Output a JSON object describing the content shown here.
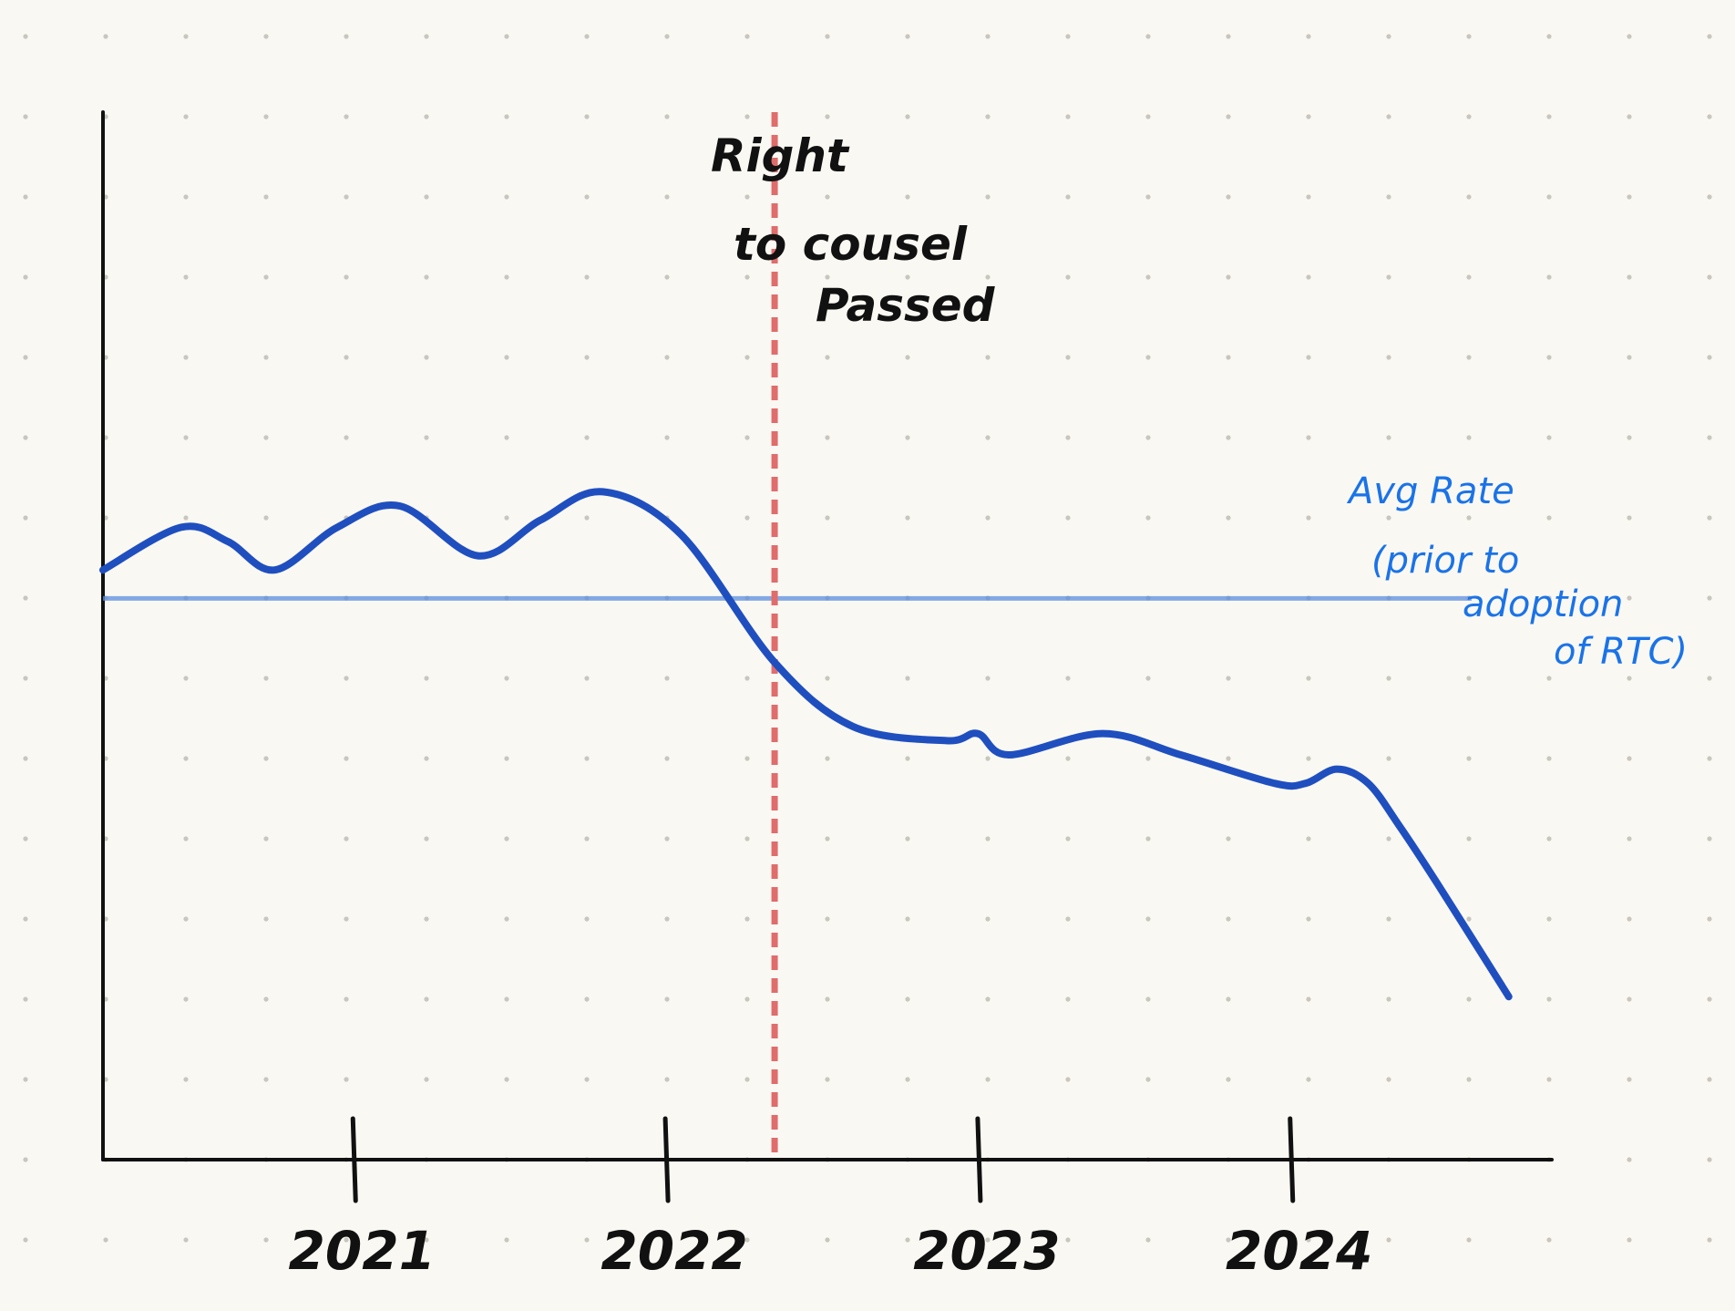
{
  "chart_data": {
    "type": "line",
    "title": "",
    "xlabel": "",
    "ylabel": "",
    "x_ticks": [
      "2021",
      "2022",
      "2023",
      "2024"
    ],
    "x_tick_positions": [
      2021.0,
      2022.0,
      2023.0,
      2024.0
    ],
    "xlim": [
      2020.2,
      2024.8
    ],
    "ylim": [
      0,
      100
    ],
    "grid": "dots",
    "series": [
      {
        "color": "#1f4fbf",
        "x": [
          2020.2,
          2020.45,
          2020.6,
          2020.75,
          2020.95,
          2021.15,
          2021.4,
          2021.6,
          2021.8,
          2022.05,
          2022.35,
          2022.6,
          2022.9,
          2023.0,
          2023.1,
          2023.4,
          2023.65,
          2023.95,
          2024.05,
          2024.15,
          2024.25,
          2024.35,
          2024.47,
          2024.7
        ],
        "y": [
          66,
          72,
          70,
          66,
          72,
          75,
          68,
          73,
          77,
          71,
          53,
          44,
          42,
          43,
          40,
          43,
          40,
          36,
          36,
          38,
          36,
          30,
          22,
          6
        ]
      }
    ],
    "reference_lines": [
      {
        "orientation": "horizontal",
        "y": 62,
        "color": "#5b8fe0",
        "label": "Avg Rate (prior to adoption of RTC)"
      },
      {
        "orientation": "vertical",
        "x": 2022.35,
        "color": "#e06c6c",
        "style": "dashed",
        "label": "Right to cousel Passed"
      }
    ]
  },
  "annotations": {
    "vertical_label_lines": [
      "Right",
      "to cousel",
      "Passed"
    ],
    "avg_label_lines": [
      "Avg Rate",
      "(prior to",
      "adoption",
      "of RTC)"
    ]
  },
  "colors": {
    "background": "#faf8f3",
    "axis": "#111111",
    "series": "#1f4fbf",
    "avg_line": "#5b8fe0",
    "event_line": "#e06c6c",
    "annotation_text": "#1a73e8"
  }
}
